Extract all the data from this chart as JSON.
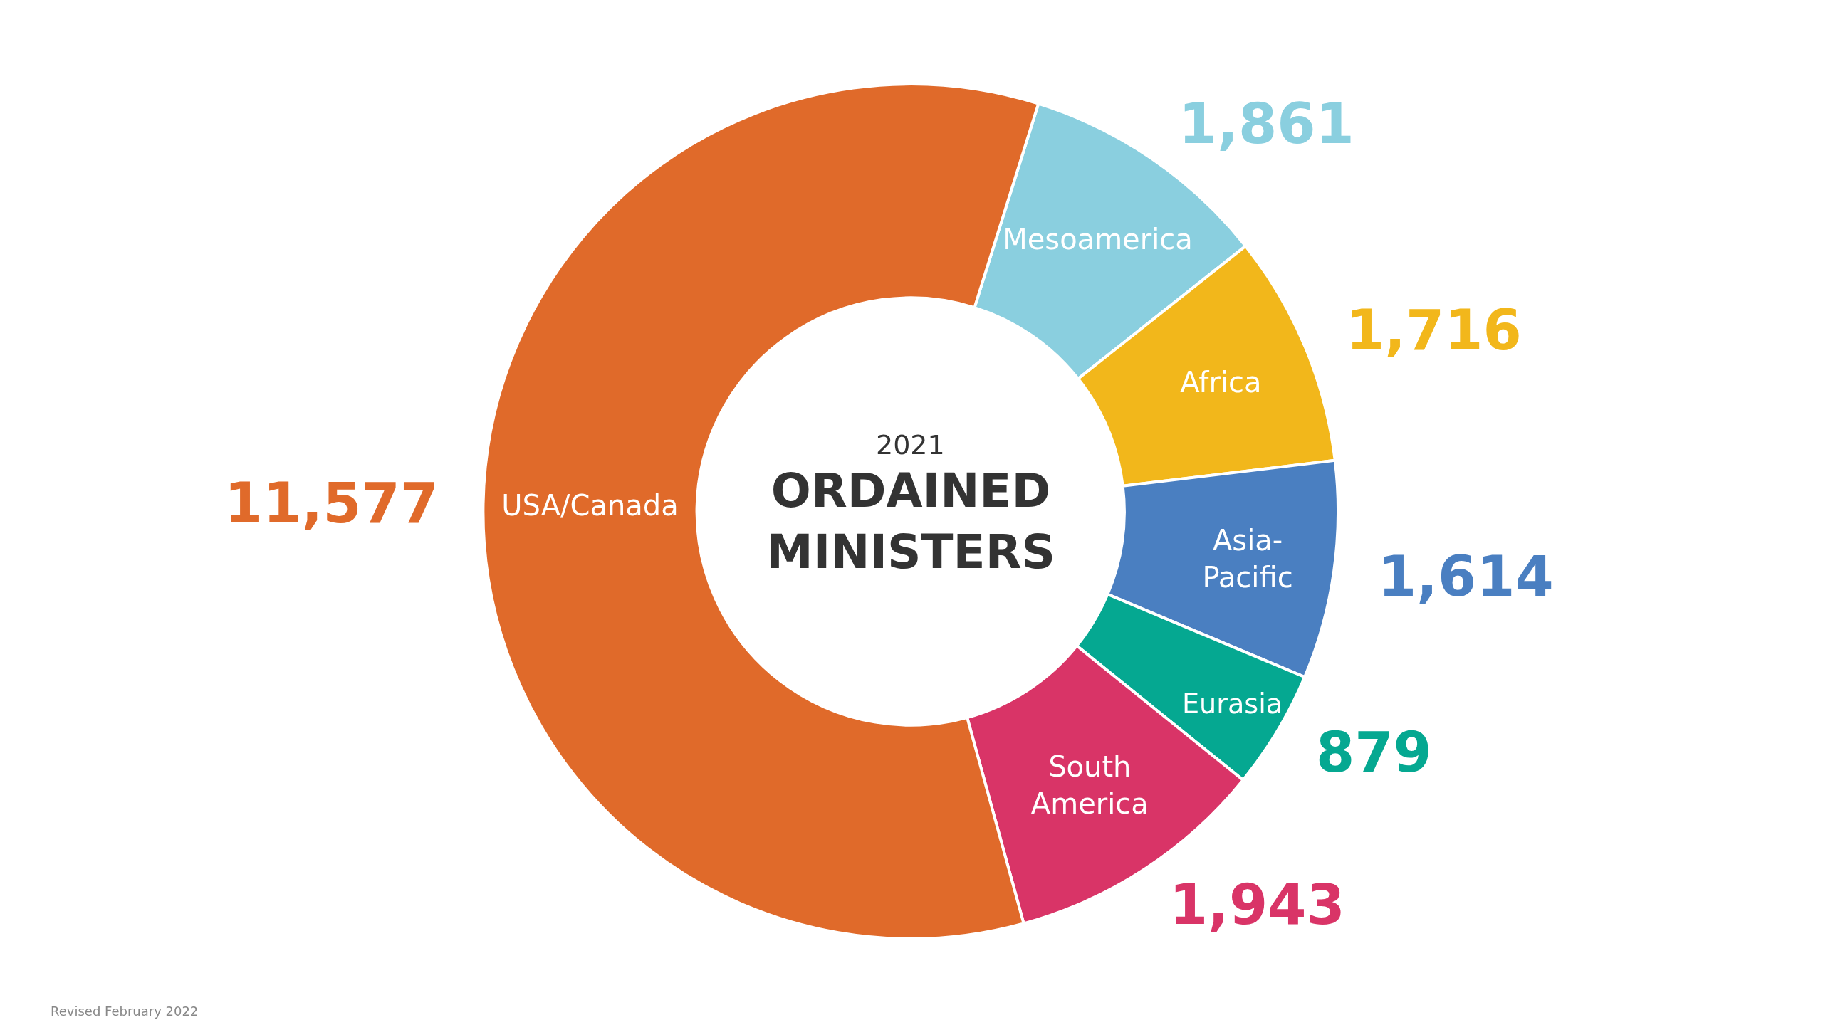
{
  "chart_data": {
    "type": "donut",
    "title": "ORDAINED MINISTERS",
    "subtitle": "2021",
    "categories": [
      "Mesoamerica",
      "Africa",
      "Asia-Pacific",
      "Eurasia",
      "South America",
      "USA/Canada"
    ],
    "values": [
      1861,
      1716,
      1614,
      879,
      1943,
      11577
    ],
    "value_labels": [
      "1,861",
      "1,716",
      "1,614",
      "879",
      "1,943",
      "11,577"
    ],
    "colors": [
      "#8acfdf",
      "#f2b71b",
      "#4a7fc1",
      "#05a891",
      "#d93467",
      "#e06a2a"
    ],
    "legend": false,
    "annotations": [
      "Revised February 2022"
    ]
  }
}
